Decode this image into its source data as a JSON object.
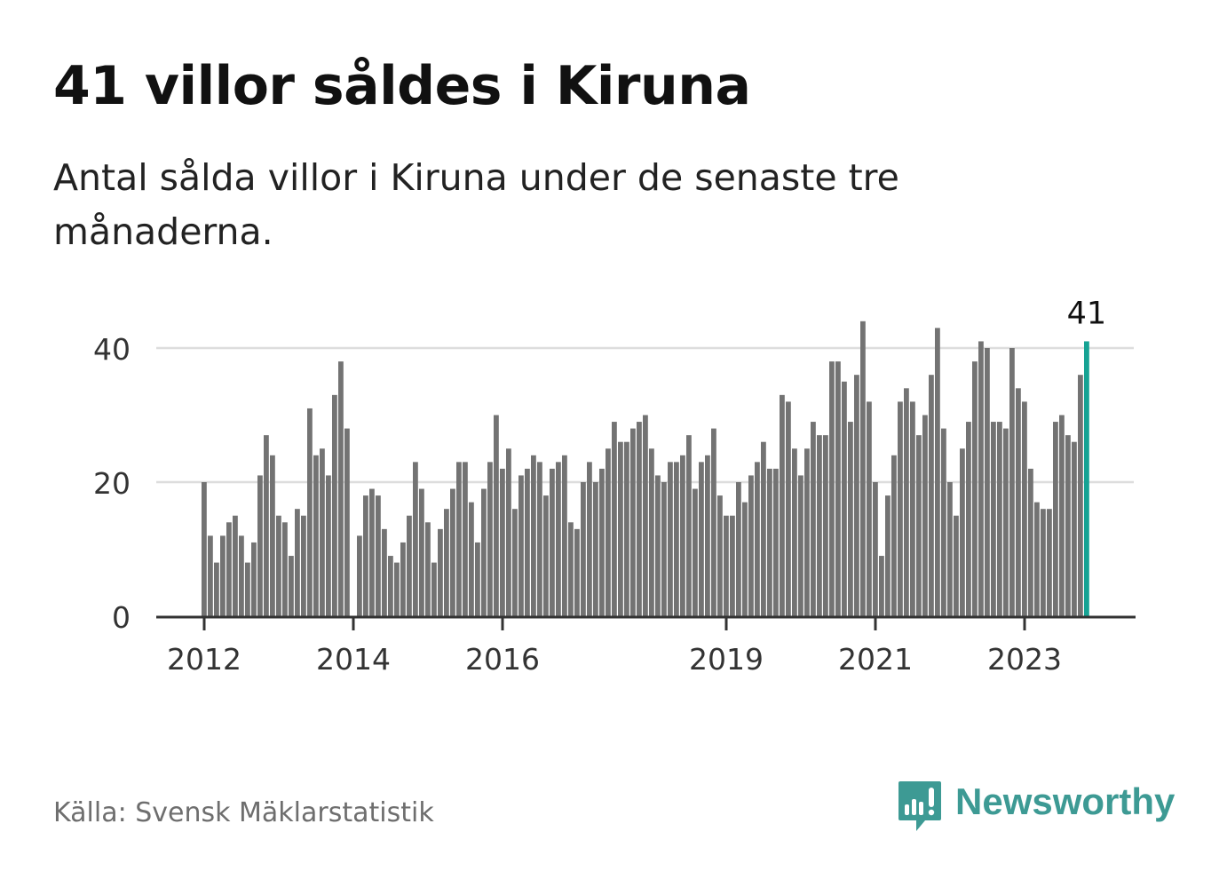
{
  "header": {
    "title": "41 villor såldes i Kiruna",
    "subtitle": "Antal sålda villor i Kiruna under de senaste tre månaderna."
  },
  "footer": {
    "source": "Källa: Svensk Mäklarstatistik",
    "brand": "Newsworthy"
  },
  "colors": {
    "bar": "#737373",
    "highlight": "#16a394",
    "grid": "#dddddd",
    "axis": "#333333",
    "brand": "#3d9a94"
  },
  "chart_data": {
    "type": "bar",
    "title": "41 villor såldes i Kiruna",
    "subtitle": "Antal sålda villor i Kiruna under de senaste tre månaderna.",
    "xlabel": "",
    "ylabel": "",
    "ylim": [
      0,
      46
    ],
    "yticks": [
      0,
      20,
      40
    ],
    "xtick_labels": [
      "2012",
      "2014",
      "2016",
      "2019",
      "2021",
      "2023"
    ],
    "xtick_indices": [
      0,
      24,
      48,
      84,
      108,
      132
    ],
    "highlight_label": "41",
    "start": "2012-01",
    "values": [
      20,
      12,
      8,
      12,
      14,
      15,
      12,
      8,
      11,
      21,
      27,
      24,
      15,
      14,
      9,
      16,
      15,
      31,
      24,
      25,
      21,
      33,
      38,
      28,
      0,
      12,
      18,
      19,
      18,
      13,
      9,
      8,
      11,
      15,
      23,
      19,
      14,
      8,
      13,
      16,
      19,
      23,
      23,
      17,
      11,
      19,
      23,
      30,
      22,
      25,
      16,
      21,
      22,
      24,
      23,
      18,
      22,
      23,
      24,
      14,
      13,
      20,
      23,
      20,
      22,
      25,
      29,
      26,
      26,
      28,
      29,
      30,
      25,
      21,
      20,
      23,
      23,
      24,
      27,
      19,
      23,
      24,
      28,
      18,
      15,
      15,
      20,
      17,
      21,
      23,
      26,
      22,
      22,
      33,
      32,
      25,
      21,
      25,
      29,
      27,
      27,
      38,
      38,
      35,
      29,
      36,
      44,
      32,
      20,
      9,
      18,
      24,
      32,
      34,
      32,
      27,
      30,
      36,
      43,
      28,
      20,
      15,
      25,
      29,
      38,
      41,
      40,
      29,
      29,
      28,
      40,
      34,
      32,
      22,
      17,
      16,
      16,
      29,
      30,
      27,
      26,
      36,
      41
    ]
  }
}
